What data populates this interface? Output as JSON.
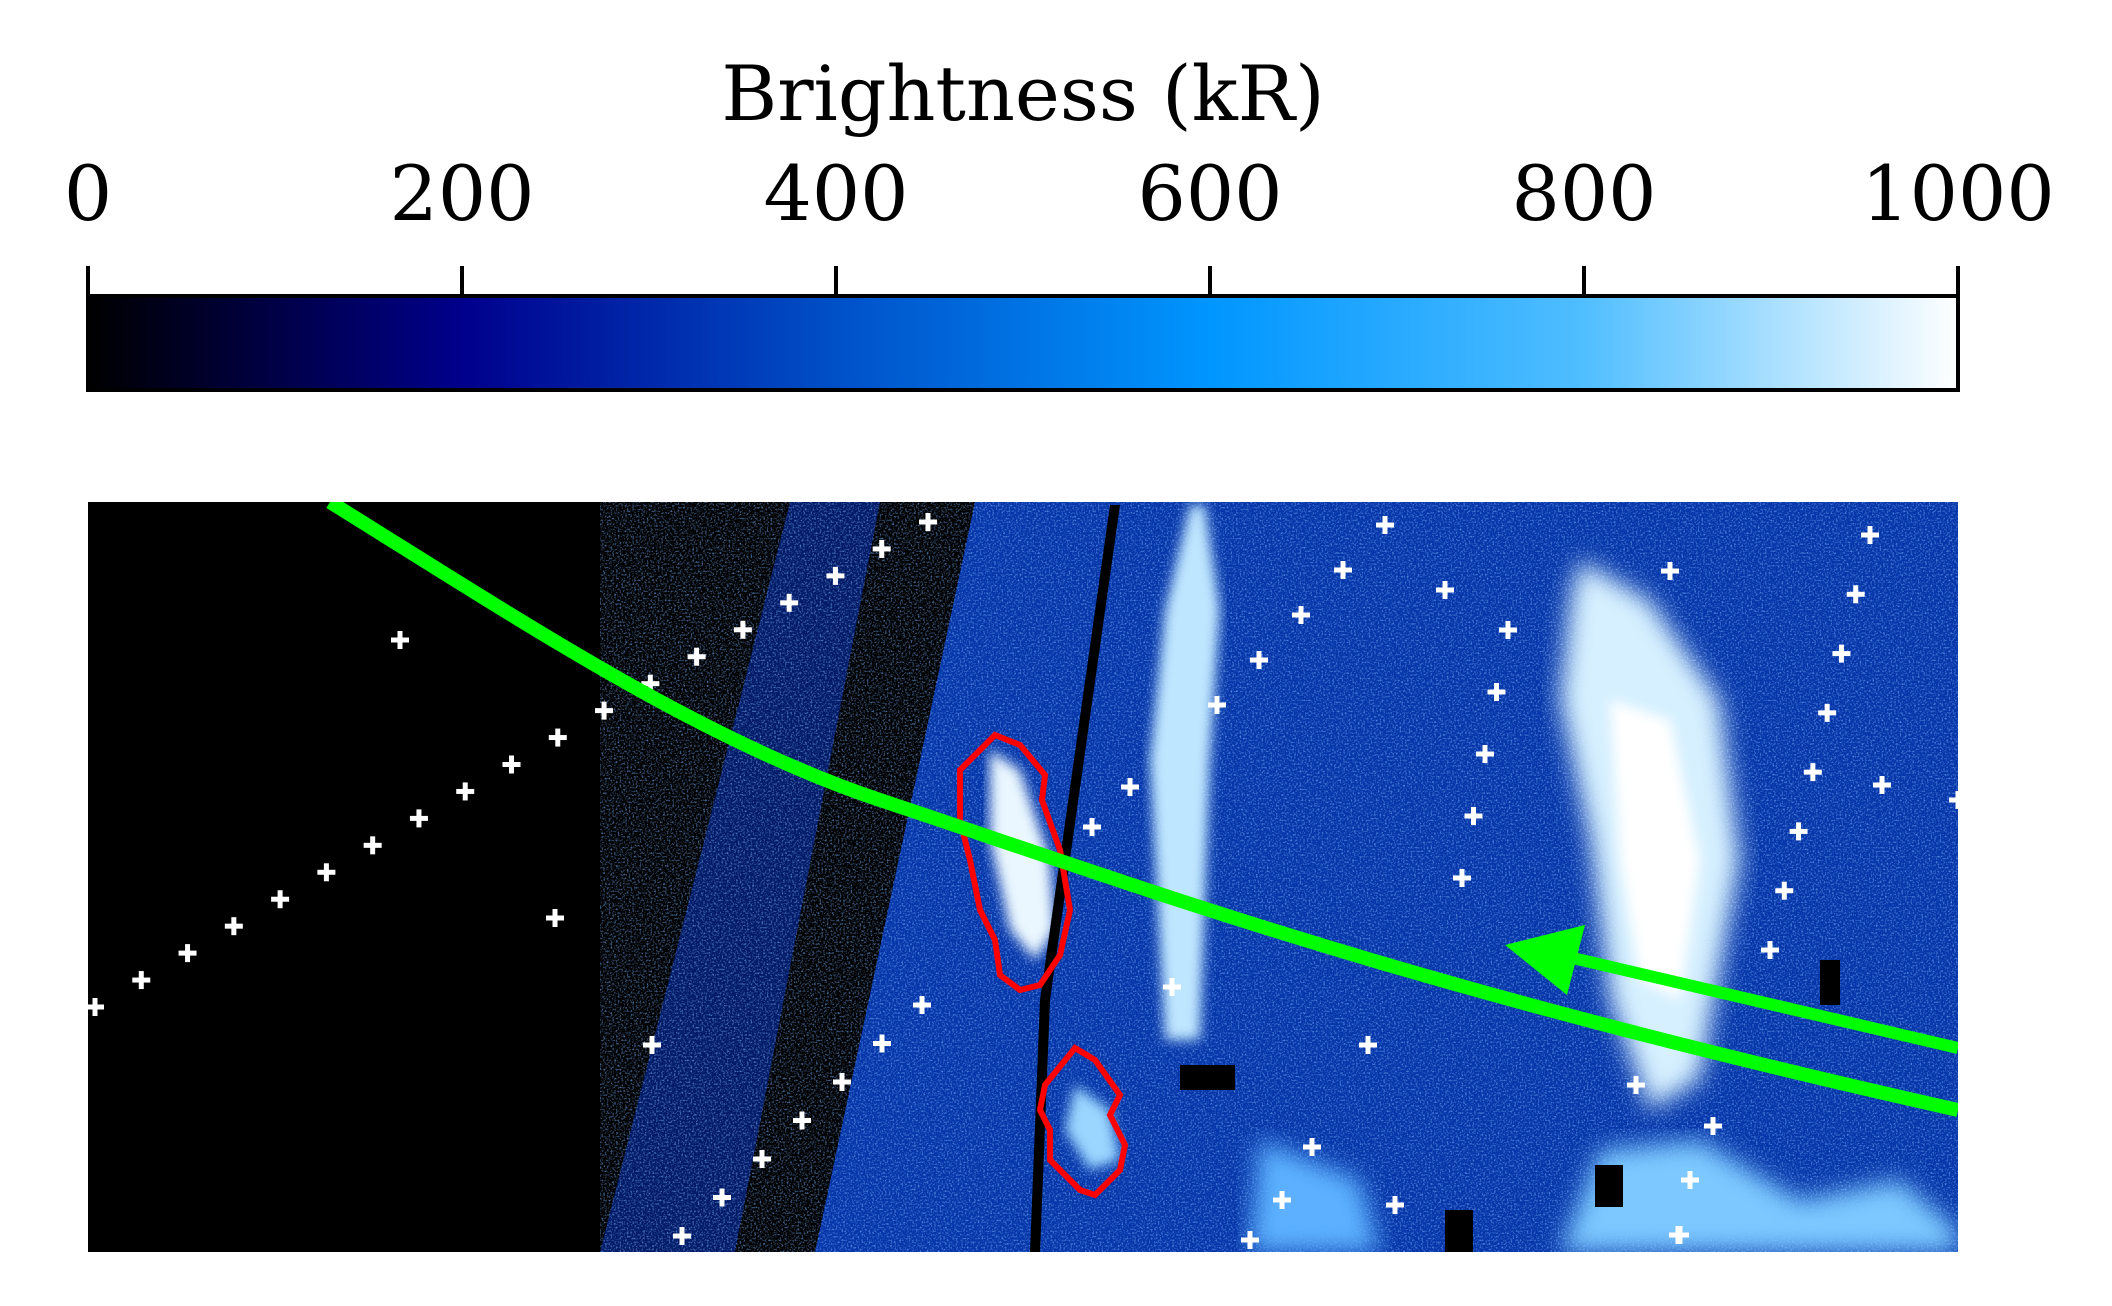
{
  "chart_data": {
    "type": "heatmap",
    "colorbar": {
      "label": "Brightness (kR)",
      "range": [
        0,
        1000
      ],
      "ticks": [
        0,
        200,
        400,
        600,
        800,
        1000
      ],
      "tick_labels": [
        "0",
        "200",
        "400",
        "600",
        "800",
        "1000"
      ],
      "orientation": "horizontal",
      "placement": "top",
      "colormap": [
        "#000000",
        "#00008c",
        "#0050c8",
        "#0096ff",
        "#50beff",
        "#ffffff"
      ]
    },
    "image": {
      "axes_visible": false,
      "background": "#000000",
      "overlays": [
        {
          "name": "green-track",
          "kind": "curve",
          "color": "#00ff00"
        },
        {
          "name": "green-arrow",
          "kind": "arrow",
          "color": "#00ff00"
        },
        {
          "name": "red-contours",
          "kind": "contour",
          "color": "#ff0000",
          "count": 2
        },
        {
          "name": "grid-points",
          "kind": "plus-markers",
          "color": "#ffffff"
        }
      ]
    }
  }
}
